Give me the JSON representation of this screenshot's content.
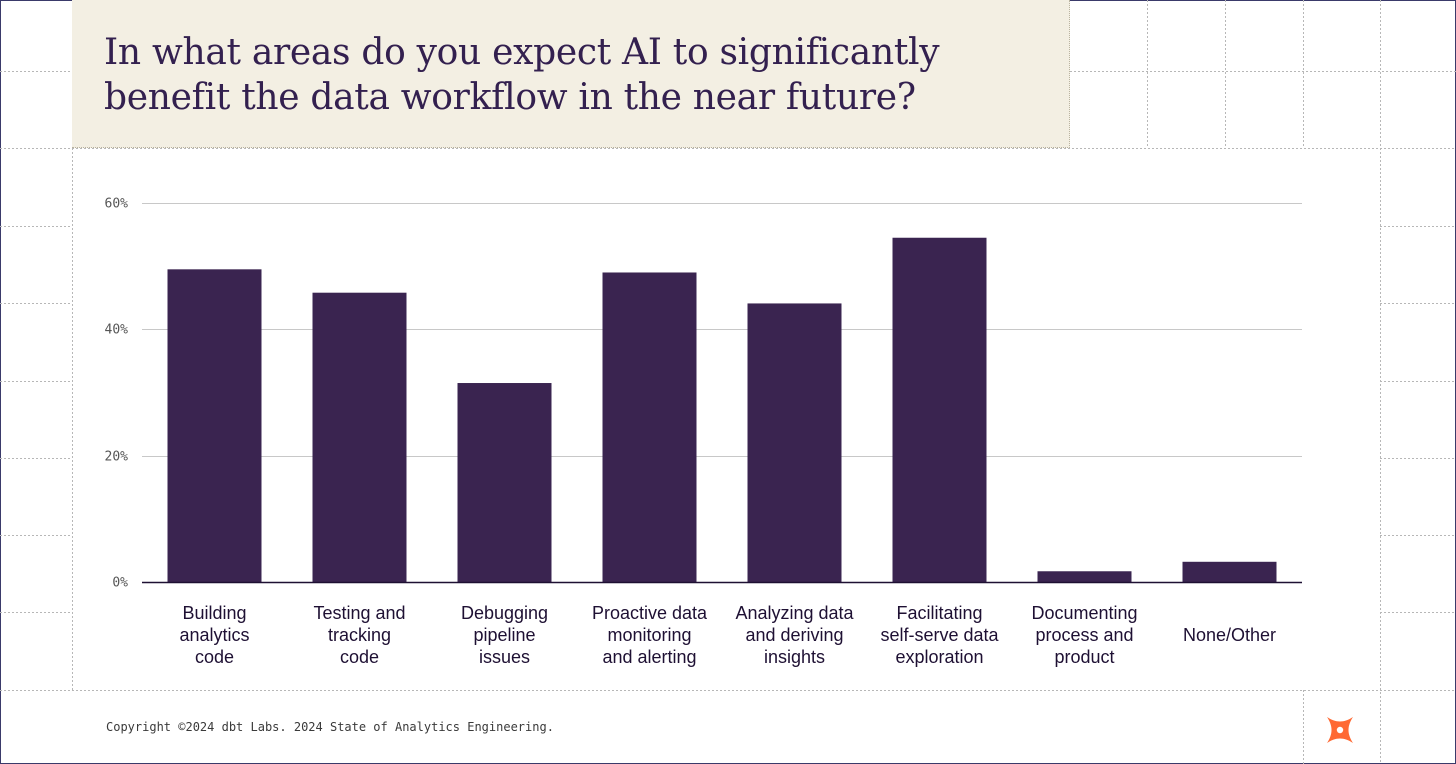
{
  "chart_data": {
    "type": "bar",
    "title": "In what areas do you expect AI to significantly benefit the data workflow in the near future?",
    "categories": [
      "Building analytics code",
      "Testing and tracking code",
      "Debugging pipeline issues",
      "Proactive data monitoring and alerting",
      "Analyzing data and deriving insights",
      "Facilitating self-serve data exploration",
      "Documenting process and product",
      "None/Other"
    ],
    "category_lines": [
      [
        "Building",
        "analytics",
        "code"
      ],
      [
        "Testing and",
        "tracking",
        "code"
      ],
      [
        "Debugging",
        "pipeline",
        "issues"
      ],
      [
        "Proactive data",
        "monitoring",
        "and alerting"
      ],
      [
        "Analyzing data",
        "and deriving",
        "insights"
      ],
      [
        "Facilitating",
        "self-serve data",
        "exploration"
      ],
      [
        "Documenting",
        "process and",
        "product"
      ],
      [
        "None/Other"
      ]
    ],
    "values": [
      49.5,
      45.8,
      31.5,
      49.0,
      44.1,
      54.5,
      1.7,
      3.2
    ],
    "ylim": [
      0,
      60
    ],
    "yticks": [
      0,
      20,
      40,
      60
    ],
    "ytick_labels": [
      "0%",
      "20%",
      "40%",
      "60%"
    ],
    "xlabel": "",
    "ylabel": "",
    "grid": true,
    "bar_color": "#3a2450"
  },
  "footer": {
    "copyright": "Copyright ©2024 dbt Labs. 2024 State of Analytics Engineering."
  },
  "colors": {
    "title_bg": "#f3efe3",
    "title_text": "#33204f",
    "logo": "#ff6933",
    "grid_dots": "#b0b0b0"
  },
  "logo_icon": "dbt-logo-icon"
}
